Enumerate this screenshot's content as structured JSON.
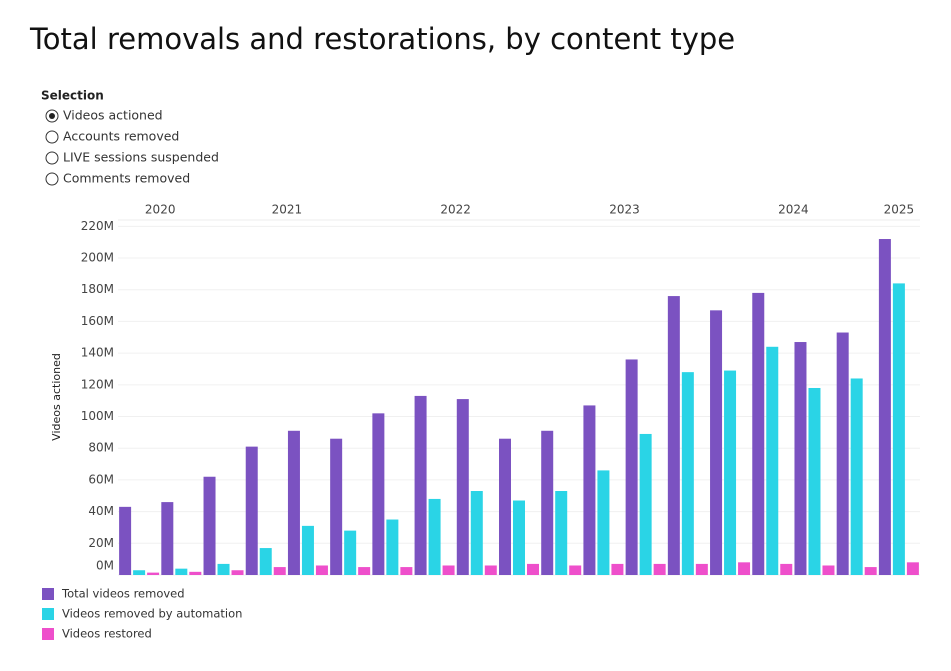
{
  "chart_data": {
    "type": "bar",
    "title": "Total removals and restorations, by content type",
    "y_label": "Videos actioned",
    "categories": [
      "2020",
      "2020",
      "2021",
      "2021",
      "2021",
      "2021",
      "2022",
      "2022",
      "2022",
      "2022",
      "2023",
      "2023",
      "2023",
      "2023",
      "2024",
      "2024",
      "2024",
      "2024",
      "2025"
    ],
    "series": [
      {
        "name": "Total videos removed",
        "color": "#7b52c1",
        "values": [
          43,
          46,
          62,
          81,
          91,
          86,
          102,
          113,
          111,
          86,
          91,
          107,
          136,
          176,
          167,
          178,
          147,
          153,
          212
        ]
      },
      {
        "name": "Videos removed by automation",
        "color": "#2ad4e6",
        "values": [
          3,
          4,
          7,
          17,
          31,
          28,
          35,
          48,
          53,
          47,
          53,
          66,
          89,
          128,
          129,
          144,
          118,
          124,
          184
        ]
      },
      {
        "name": "Videos restored",
        "color": "#ee4fcb",
        "values": [
          1.5,
          2,
          3,
          5,
          6,
          5,
          5,
          6,
          6,
          7,
          6,
          7,
          7,
          7,
          8,
          7,
          6,
          5,
          8
        ]
      }
    ],
    "ylim": [
      0,
      224
    ],
    "yticks": [
      {
        "value": 0,
        "label": "0M"
      },
      {
        "value": 20,
        "label": "20M"
      },
      {
        "value": 40,
        "label": "40M"
      },
      {
        "value": 60,
        "label": "60M"
      },
      {
        "value": 80,
        "label": "80M"
      },
      {
        "value": 100,
        "label": "100M"
      },
      {
        "value": 120,
        "label": "120M"
      },
      {
        "value": 140,
        "label": "140M"
      },
      {
        "value": 160,
        "label": "160M"
      },
      {
        "value": 180,
        "label": "180M"
      },
      {
        "value": 200,
        "label": "200M"
      },
      {
        "value": 220,
        "label": "220M"
      }
    ],
    "grid": true
  },
  "selection": {
    "title": "Selection",
    "options": [
      "Videos actioned",
      "Accounts removed",
      "LIVE sessions suspended",
      "Comments removed"
    ],
    "selected": 0
  }
}
